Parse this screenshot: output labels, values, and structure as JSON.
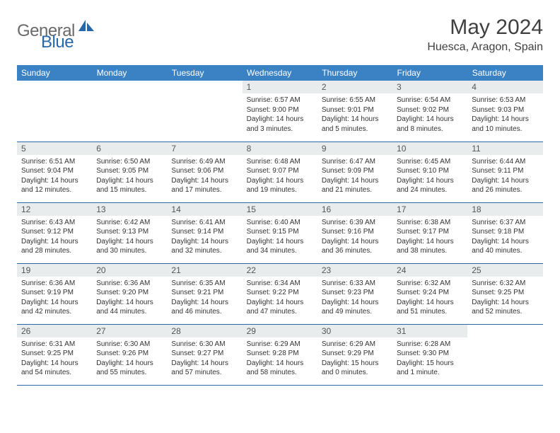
{
  "logo": {
    "text1": "General",
    "text2": "Blue"
  },
  "title": "May 2024",
  "location": "Huesca, Aragon, Spain",
  "colors": {
    "header_bg": "#3b82c4",
    "header_text": "#ffffff",
    "daynum_bg": "#e8eced",
    "border": "#2968a8",
    "logo_gray": "#6a6a6a",
    "logo_blue": "#2968a8"
  },
  "day_headers": [
    "Sunday",
    "Monday",
    "Tuesday",
    "Wednesday",
    "Thursday",
    "Friday",
    "Saturday"
  ],
  "weeks": [
    [
      {
        "n": "",
        "sr": "",
        "ss": "",
        "dl": ""
      },
      {
        "n": "",
        "sr": "",
        "ss": "",
        "dl": ""
      },
      {
        "n": "",
        "sr": "",
        "ss": "",
        "dl": ""
      },
      {
        "n": "1",
        "sr": "Sunrise: 6:57 AM",
        "ss": "Sunset: 9:00 PM",
        "dl": "Daylight: 14 hours and 3 minutes."
      },
      {
        "n": "2",
        "sr": "Sunrise: 6:55 AM",
        "ss": "Sunset: 9:01 PM",
        "dl": "Daylight: 14 hours and 5 minutes."
      },
      {
        "n": "3",
        "sr": "Sunrise: 6:54 AM",
        "ss": "Sunset: 9:02 PM",
        "dl": "Daylight: 14 hours and 8 minutes."
      },
      {
        "n": "4",
        "sr": "Sunrise: 6:53 AM",
        "ss": "Sunset: 9:03 PM",
        "dl": "Daylight: 14 hours and 10 minutes."
      }
    ],
    [
      {
        "n": "5",
        "sr": "Sunrise: 6:51 AM",
        "ss": "Sunset: 9:04 PM",
        "dl": "Daylight: 14 hours and 12 minutes."
      },
      {
        "n": "6",
        "sr": "Sunrise: 6:50 AM",
        "ss": "Sunset: 9:05 PM",
        "dl": "Daylight: 14 hours and 15 minutes."
      },
      {
        "n": "7",
        "sr": "Sunrise: 6:49 AM",
        "ss": "Sunset: 9:06 PM",
        "dl": "Daylight: 14 hours and 17 minutes."
      },
      {
        "n": "8",
        "sr": "Sunrise: 6:48 AM",
        "ss": "Sunset: 9:07 PM",
        "dl": "Daylight: 14 hours and 19 minutes."
      },
      {
        "n": "9",
        "sr": "Sunrise: 6:47 AM",
        "ss": "Sunset: 9:09 PM",
        "dl": "Daylight: 14 hours and 21 minutes."
      },
      {
        "n": "10",
        "sr": "Sunrise: 6:45 AM",
        "ss": "Sunset: 9:10 PM",
        "dl": "Daylight: 14 hours and 24 minutes."
      },
      {
        "n": "11",
        "sr": "Sunrise: 6:44 AM",
        "ss": "Sunset: 9:11 PM",
        "dl": "Daylight: 14 hours and 26 minutes."
      }
    ],
    [
      {
        "n": "12",
        "sr": "Sunrise: 6:43 AM",
        "ss": "Sunset: 9:12 PM",
        "dl": "Daylight: 14 hours and 28 minutes."
      },
      {
        "n": "13",
        "sr": "Sunrise: 6:42 AM",
        "ss": "Sunset: 9:13 PM",
        "dl": "Daylight: 14 hours and 30 minutes."
      },
      {
        "n": "14",
        "sr": "Sunrise: 6:41 AM",
        "ss": "Sunset: 9:14 PM",
        "dl": "Daylight: 14 hours and 32 minutes."
      },
      {
        "n": "15",
        "sr": "Sunrise: 6:40 AM",
        "ss": "Sunset: 9:15 PM",
        "dl": "Daylight: 14 hours and 34 minutes."
      },
      {
        "n": "16",
        "sr": "Sunrise: 6:39 AM",
        "ss": "Sunset: 9:16 PM",
        "dl": "Daylight: 14 hours and 36 minutes."
      },
      {
        "n": "17",
        "sr": "Sunrise: 6:38 AM",
        "ss": "Sunset: 9:17 PM",
        "dl": "Daylight: 14 hours and 38 minutes."
      },
      {
        "n": "18",
        "sr": "Sunrise: 6:37 AM",
        "ss": "Sunset: 9:18 PM",
        "dl": "Daylight: 14 hours and 40 minutes."
      }
    ],
    [
      {
        "n": "19",
        "sr": "Sunrise: 6:36 AM",
        "ss": "Sunset: 9:19 PM",
        "dl": "Daylight: 14 hours and 42 minutes."
      },
      {
        "n": "20",
        "sr": "Sunrise: 6:36 AM",
        "ss": "Sunset: 9:20 PM",
        "dl": "Daylight: 14 hours and 44 minutes."
      },
      {
        "n": "21",
        "sr": "Sunrise: 6:35 AM",
        "ss": "Sunset: 9:21 PM",
        "dl": "Daylight: 14 hours and 46 minutes."
      },
      {
        "n": "22",
        "sr": "Sunrise: 6:34 AM",
        "ss": "Sunset: 9:22 PM",
        "dl": "Daylight: 14 hours and 47 minutes."
      },
      {
        "n": "23",
        "sr": "Sunrise: 6:33 AM",
        "ss": "Sunset: 9:23 PM",
        "dl": "Daylight: 14 hours and 49 minutes."
      },
      {
        "n": "24",
        "sr": "Sunrise: 6:32 AM",
        "ss": "Sunset: 9:24 PM",
        "dl": "Daylight: 14 hours and 51 minutes."
      },
      {
        "n": "25",
        "sr": "Sunrise: 6:32 AM",
        "ss": "Sunset: 9:25 PM",
        "dl": "Daylight: 14 hours and 52 minutes."
      }
    ],
    [
      {
        "n": "26",
        "sr": "Sunrise: 6:31 AM",
        "ss": "Sunset: 9:25 PM",
        "dl": "Daylight: 14 hours and 54 minutes."
      },
      {
        "n": "27",
        "sr": "Sunrise: 6:30 AM",
        "ss": "Sunset: 9:26 PM",
        "dl": "Daylight: 14 hours and 55 minutes."
      },
      {
        "n": "28",
        "sr": "Sunrise: 6:30 AM",
        "ss": "Sunset: 9:27 PM",
        "dl": "Daylight: 14 hours and 57 minutes."
      },
      {
        "n": "29",
        "sr": "Sunrise: 6:29 AM",
        "ss": "Sunset: 9:28 PM",
        "dl": "Daylight: 14 hours and 58 minutes."
      },
      {
        "n": "30",
        "sr": "Sunrise: 6:29 AM",
        "ss": "Sunset: 9:29 PM",
        "dl": "Daylight: 15 hours and 0 minutes."
      },
      {
        "n": "31",
        "sr": "Sunrise: 6:28 AM",
        "ss": "Sunset: 9:30 PM",
        "dl": "Daylight: 15 hours and 1 minute."
      },
      {
        "n": "",
        "sr": "",
        "ss": "",
        "dl": ""
      }
    ]
  ]
}
